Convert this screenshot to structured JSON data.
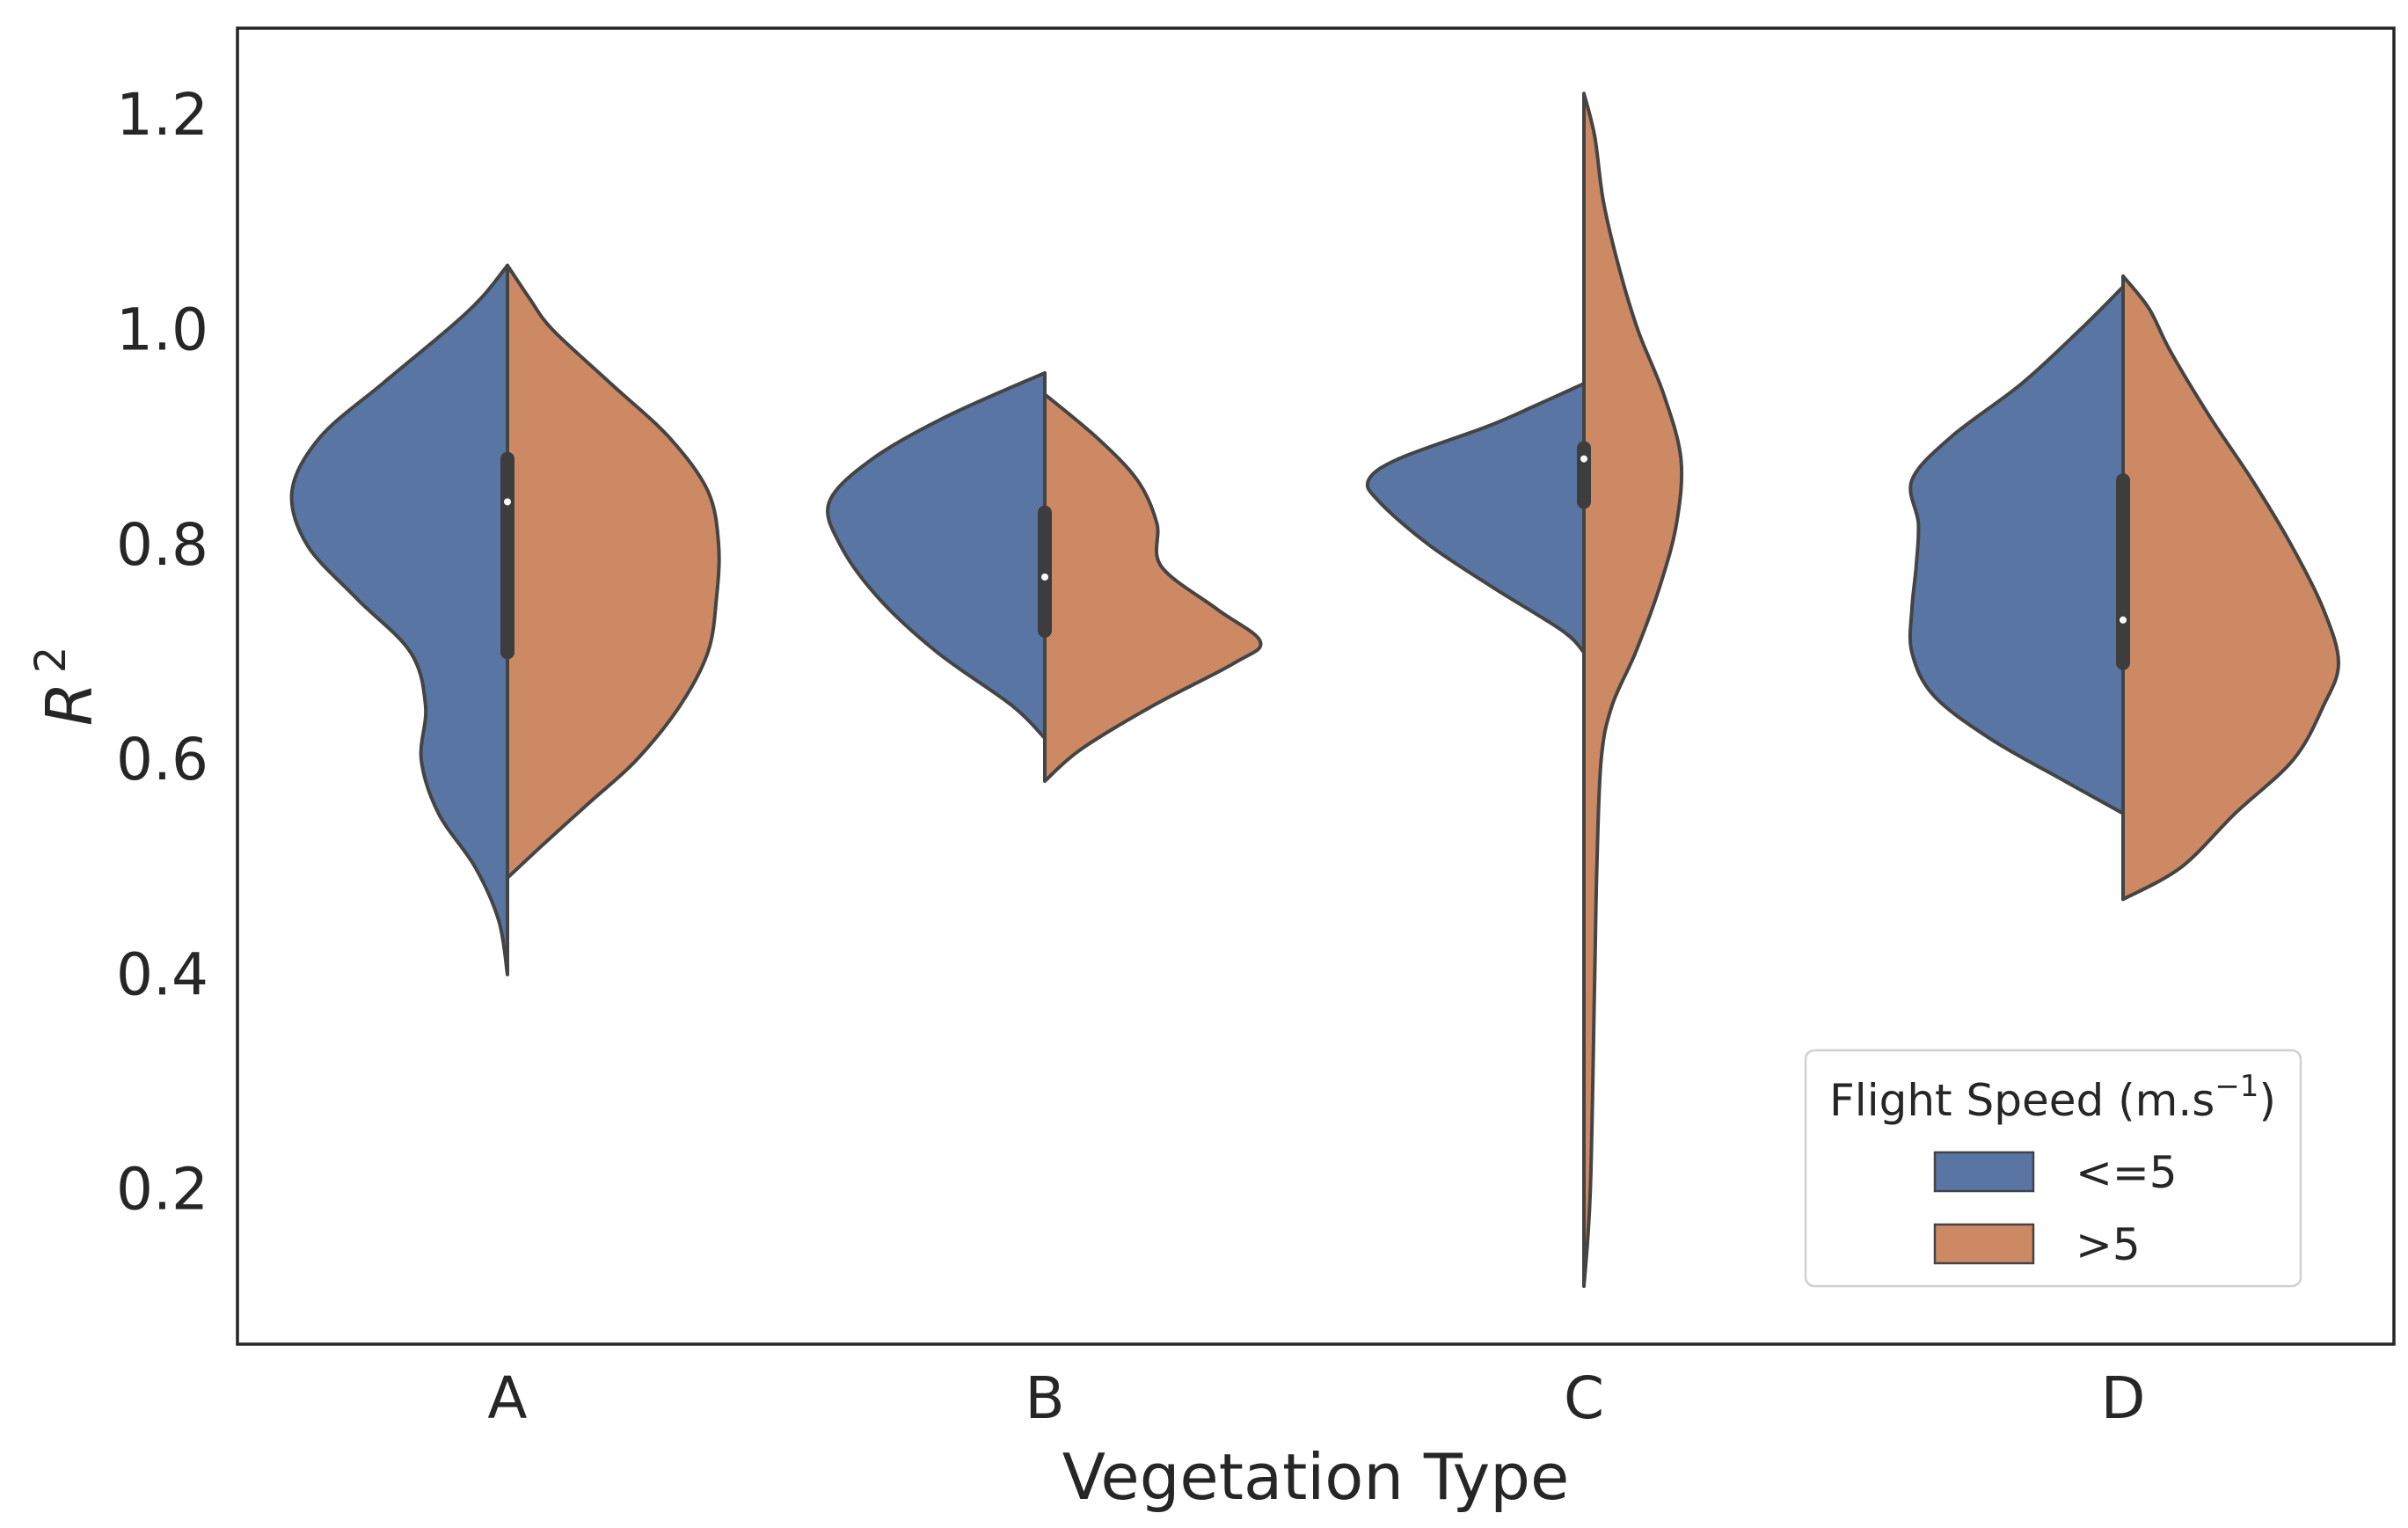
{
  "chart_data": {
    "type": "violin",
    "title": "",
    "xlabel": "Vegetation Type",
    "ylabel": "R",
    "ylabel_superscript": "2",
    "ylim": [
      0.06,
      1.28
    ],
    "yticks": [
      0.2,
      0.4,
      0.6,
      0.8,
      1.0,
      1.2
    ],
    "ytick_labels": [
      "0.2",
      "0.4",
      "0.6",
      "0.8",
      "1.0",
      "1.2"
    ],
    "categories": [
      "A",
      "B",
      "C",
      "D"
    ],
    "grid": false,
    "legend": {
      "title": "Flight Speed (m.s",
      "title_superscript": "−1",
      "title_suffix": ")",
      "position": "bottom-right",
      "entries": [
        {
          "label": "<=5",
          "color": "#5875a4"
        },
        {
          "label": ">5",
          "color": "#cc8963"
        }
      ]
    },
    "series": [
      {
        "name": "<=5",
        "side": "left",
        "color": "#5875a4",
        "violins": [
          {
            "category": "A",
            "min": 0.4,
            "max": 1.06,
            "profile": [
              [
                0.4,
                0.0
              ],
              [
                0.45,
                0.04
              ],
              [
                0.5,
                0.15
              ],
              [
                0.55,
                0.32
              ],
              [
                0.6,
                0.4
              ],
              [
                0.65,
                0.38
              ],
              [
                0.7,
                0.45
              ],
              [
                0.75,
                0.7
              ],
              [
                0.8,
                0.93
              ],
              [
                0.85,
                1.0
              ],
              [
                0.9,
                0.87
              ],
              [
                0.95,
                0.58
              ],
              [
                1.0,
                0.28
              ],
              [
                1.03,
                0.12
              ],
              [
                1.06,
                0.0
              ]
            ]
          },
          {
            "category": "B",
            "min": 0.62,
            "max": 0.96,
            "profile": [
              [
                0.62,
                0.0
              ],
              [
                0.65,
                0.15
              ],
              [
                0.7,
                0.5
              ],
              [
                0.75,
                0.77
              ],
              [
                0.8,
                0.95
              ],
              [
                0.84,
                1.0
              ],
              [
                0.88,
                0.8
              ],
              [
                0.92,
                0.45
              ],
              [
                0.96,
                0.0
              ]
            ]
          },
          {
            "category": "C",
            "min": 0.7,
            "max": 0.95,
            "profile": [
              [
                0.7,
                0.0
              ],
              [
                0.72,
                0.1
              ],
              [
                0.76,
                0.42
              ],
              [
                0.8,
                0.72
              ],
              [
                0.84,
                0.95
              ],
              [
                0.86,
                1.0
              ],
              [
                0.88,
                0.86
              ],
              [
                0.91,
                0.45
              ],
              [
                0.93,
                0.22
              ],
              [
                0.95,
                0.0
              ]
            ]
          },
          {
            "category": "D",
            "min": 0.55,
            "max": 1.04,
            "profile": [
              [
                0.55,
                0.0
              ],
              [
                0.58,
                0.27
              ],
              [
                0.62,
                0.62
              ],
              [
                0.66,
                0.88
              ],
              [
                0.7,
                0.98
              ],
              [
                0.74,
                0.98
              ],
              [
                0.78,
                0.96
              ],
              [
                0.82,
                0.95
              ],
              [
                0.86,
                0.98
              ],
              [
                0.9,
                0.8
              ],
              [
                0.95,
                0.47
              ],
              [
                1.0,
                0.2
              ],
              [
                1.04,
                0.0
              ]
            ]
          }
        ]
      },
      {
        "name": ">5",
        "side": "right",
        "color": "#cc8963",
        "violins": [
          {
            "category": "A",
            "min": 0.49,
            "max": 1.06,
            "profile": [
              [
                0.49,
                0.0
              ],
              [
                0.52,
                0.16
              ],
              [
                0.56,
                0.38
              ],
              [
                0.6,
                0.6
              ],
              [
                0.65,
                0.8
              ],
              [
                0.7,
                0.93
              ],
              [
                0.75,
                0.97
              ],
              [
                0.8,
                0.98
              ],
              [
                0.85,
                0.93
              ],
              [
                0.9,
                0.75
              ],
              [
                0.95,
                0.48
              ],
              [
                1.0,
                0.21
              ],
              [
                1.03,
                0.1
              ],
              [
                1.06,
                0.0
              ]
            ]
          },
          {
            "category": "B",
            "min": 0.58,
            "max": 0.94,
            "profile": [
              [
                0.58,
                0.0
              ],
              [
                0.61,
                0.17
              ],
              [
                0.65,
                0.5
              ],
              [
                0.69,
                0.88
              ],
              [
                0.71,
                1.0
              ],
              [
                0.74,
                0.8
              ],
              [
                0.78,
                0.54
              ],
              [
                0.82,
                0.52
              ],
              [
                0.86,
                0.43
              ],
              [
                0.9,
                0.24
              ],
              [
                0.94,
                0.0
              ]
            ]
          },
          {
            "category": "C",
            "min": 0.11,
            "max": 1.22,
            "profile": [
              [
                0.11,
                0.0
              ],
              [
                0.2,
                0.03
              ],
              [
                0.4,
                0.05
              ],
              [
                0.5,
                0.06
              ],
              [
                0.6,
                0.08
              ],
              [
                0.65,
                0.13
              ],
              [
                0.7,
                0.24
              ],
              [
                0.76,
                0.35
              ],
              [
                0.82,
                0.43
              ],
              [
                0.88,
                0.45
              ],
              [
                0.94,
                0.37
              ],
              [
                1.0,
                0.25
              ],
              [
                1.06,
                0.16
              ],
              [
                1.12,
                0.09
              ],
              [
                1.18,
                0.05
              ],
              [
                1.22,
                0.0
              ]
            ]
          },
          {
            "category": "D",
            "min": 0.47,
            "max": 1.05,
            "profile": [
              [
                0.47,
                0.0
              ],
              [
                0.5,
                0.27
              ],
              [
                0.55,
                0.52
              ],
              [
                0.6,
                0.79
              ],
              [
                0.65,
                0.93
              ],
              [
                0.69,
                1.0
              ],
              [
                0.74,
                0.93
              ],
              [
                0.8,
                0.78
              ],
              [
                0.86,
                0.6
              ],
              [
                0.92,
                0.4
              ],
              [
                0.98,
                0.22
              ],
              [
                1.02,
                0.12
              ],
              [
                1.05,
                0.0
              ]
            ]
          }
        ]
      }
    ],
    "inner_box": [
      {
        "category": "A",
        "q1": 0.7,
        "median": 0.84,
        "q3": 0.88
      },
      {
        "category": "B",
        "q1": 0.72,
        "median": 0.77,
        "q3": 0.83
      },
      {
        "category": "C",
        "q1": 0.84,
        "median": 0.88,
        "q3": 0.89
      },
      {
        "category": "D",
        "q1": 0.69,
        "median": 0.73,
        "q3": 0.86
      }
    ]
  }
}
